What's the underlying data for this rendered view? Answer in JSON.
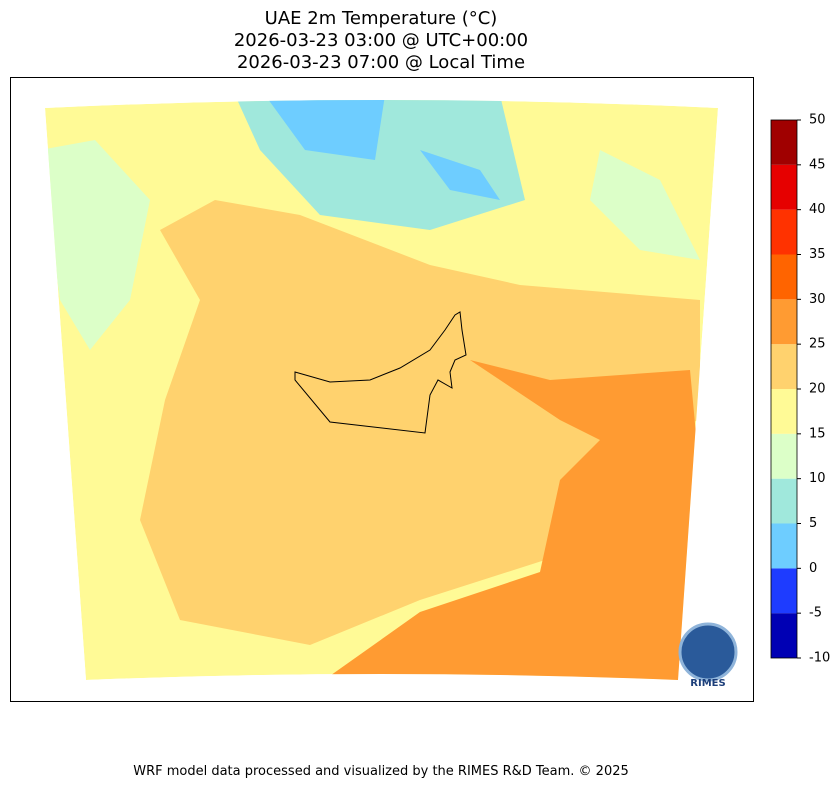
{
  "title": [
    "UAE 2m Temperature (°C)",
    "2026-03-23 03:00 @ UTC+00:00",
    "2026-03-23 07:00 @ Local Time"
  ],
  "colorbar": {
    "levels": [
      -10,
      -5,
      0,
      5,
      10,
      15,
      20,
      25,
      30,
      35,
      40,
      45,
      50
    ],
    "colors": [
      "#0000b4",
      "#1e3cff",
      "#6ecdff",
      "#a0e8dc",
      "#dcffc8",
      "#fffa96",
      "#ffd26e",
      "#ff9b32",
      "#ff6400",
      "#ff3200",
      "#e60000",
      "#a00000"
    ]
  },
  "logo": "RIMES",
  "footer": "WRF model data processed and visualized by the RIMES R&D Team. © 2025"
}
